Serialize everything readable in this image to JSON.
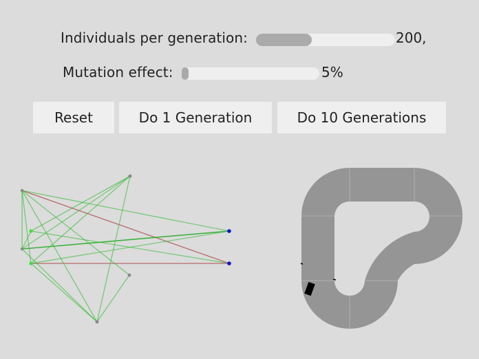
{
  "controls": {
    "individuals": {
      "label": "Individuals per generation:",
      "value_text": "200,",
      "fill_fraction": 0.4
    },
    "mutation": {
      "label": "Mutation effect:",
      "value_text": "5%",
      "fill_fraction": 0.05
    }
  },
  "buttons": {
    "reset": "Reset",
    "do_one": "Do 1 Generation",
    "do_ten": "Do 10 Generations"
  },
  "colors": {
    "background": "#dcdcdc",
    "control_track": "#efefef",
    "control_fill": "#aaaaaa",
    "positive_edge": "#33bb33",
    "negative_edge": "#aa4444",
    "input_node": "#44dd44",
    "output_node": "#1111cc",
    "hidden_node": "#888888",
    "track": "#959595",
    "car": "#000000"
  },
  "network": {
    "node_roles": [
      "input",
      "input",
      "input",
      "input",
      "hidden",
      "hidden",
      "hidden",
      "output",
      "output"
    ]
  },
  "track": {
    "icons": [
      "car-icon",
      "sensor-icon"
    ]
  }
}
